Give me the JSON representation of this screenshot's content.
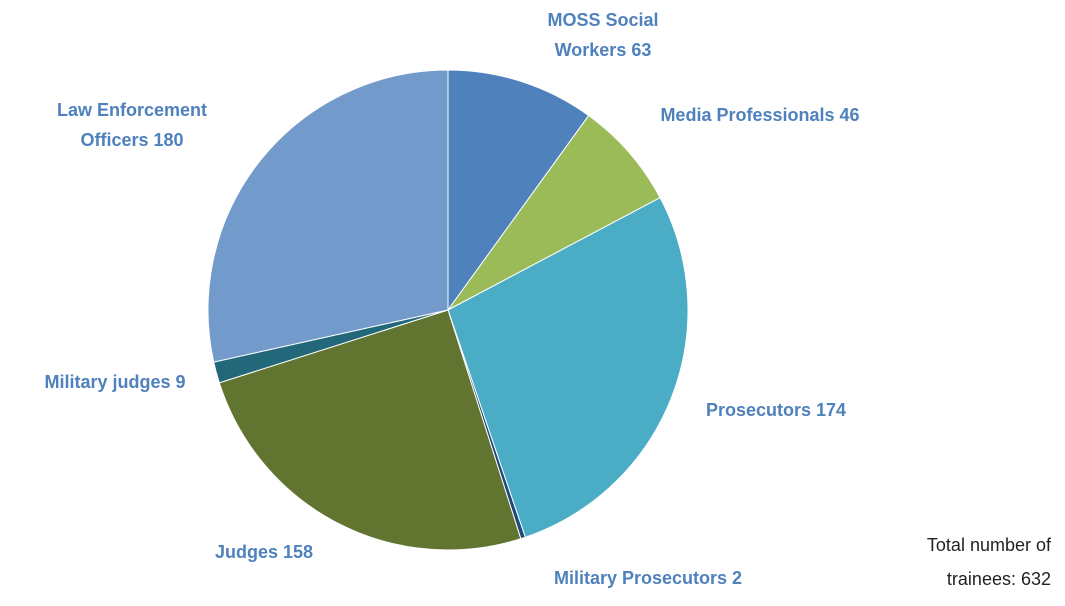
{
  "chart_data": {
    "type": "pie",
    "categories": [
      "MOSS Social Workers",
      "Media Professionals",
      "Prosecutors",
      "Military Prosecutors",
      "Judges",
      "Military judges",
      "Law Enforcement Officers"
    ],
    "values": [
      63,
      46,
      174,
      2,
      158,
      9,
      180
    ],
    "colors": [
      "#4f81bd",
      "#9bbb59",
      "#4bacc6",
      "#1f497d",
      "#617530",
      "#23687a",
      "#729aca"
    ],
    "label_color": "#4f81bd",
    "annotation": "Total number of trainees: 632"
  }
}
